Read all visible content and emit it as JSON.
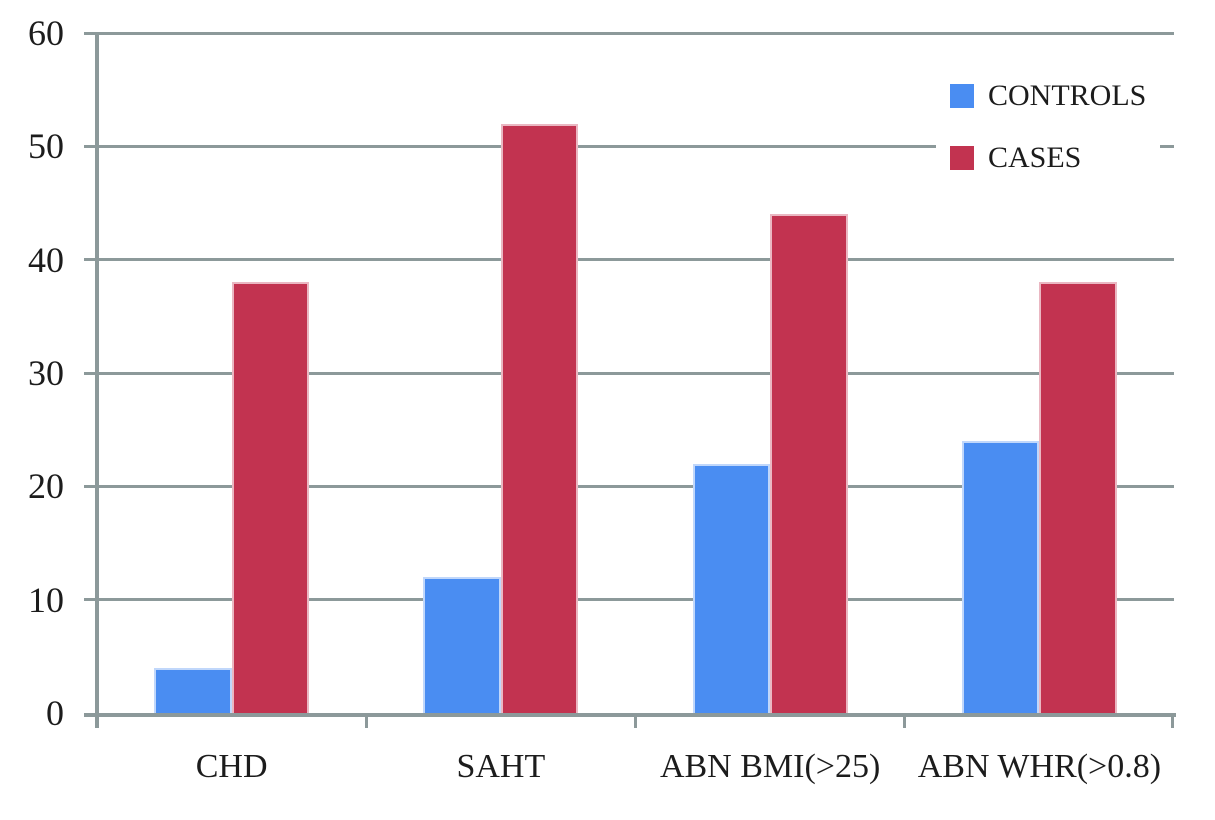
{
  "chart_data": {
    "type": "bar",
    "title": "",
    "xlabel": "",
    "ylabel": "",
    "categories": [
      "CHD",
      "SAHT",
      "ABN BMI(>25)",
      "ABN WHR(>0.8)"
    ],
    "series": [
      {
        "name": "CONTROLS",
        "color": "#4A8DF2",
        "values": [
          4,
          12,
          22,
          24
        ]
      },
      {
        "name": "CASES",
        "color": "#C23350",
        "values": [
          38,
          52,
          44,
          38
        ]
      }
    ],
    "ylim": [
      0,
      60
    ],
    "ytick_step": 10,
    "yticks": [
      0,
      10,
      20,
      30,
      40,
      50,
      60
    ],
    "grid": true,
    "legend_position": "top-right"
  },
  "colors": {
    "axis": "#8C999A",
    "gridline": "#8C999A",
    "text": "#1C1C1C",
    "background": "#FFFFFF"
  }
}
